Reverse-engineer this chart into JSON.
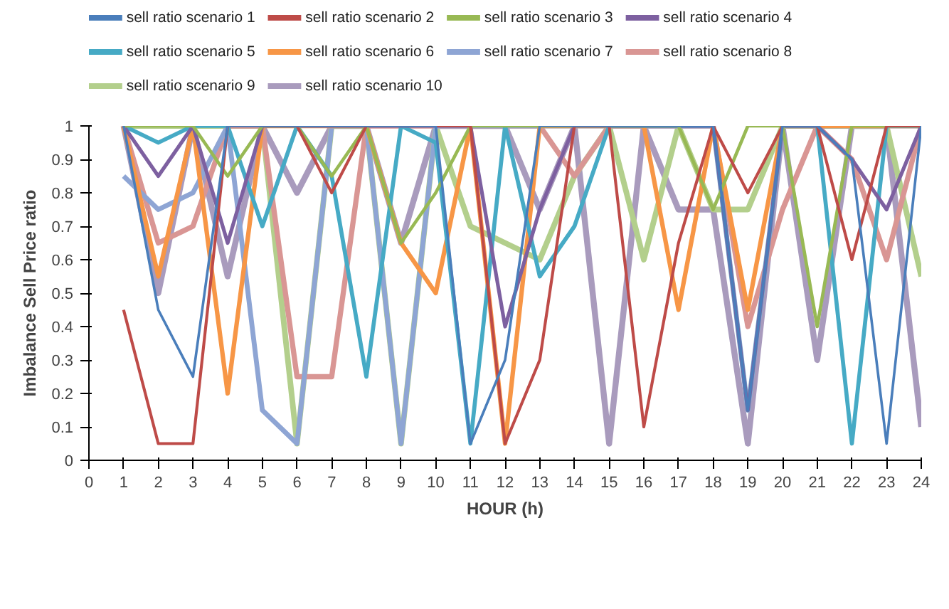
{
  "chart_data": {
    "type": "line",
    "xlabel": "HOUR (h)",
    "ylabel": "Imbalance Sell Price ratio",
    "x": [
      1,
      2,
      3,
      4,
      5,
      6,
      7,
      8,
      9,
      10,
      11,
      12,
      13,
      14,
      15,
      16,
      17,
      18,
      19,
      20,
      21,
      22,
      23,
      24
    ],
    "xlim": [
      0,
      24
    ],
    "xticks": [
      0,
      1,
      2,
      3,
      4,
      5,
      6,
      7,
      8,
      9,
      10,
      11,
      12,
      13,
      14,
      15,
      16,
      17,
      18,
      19,
      20,
      21,
      22,
      23,
      24
    ],
    "ylim": [
      0,
      1
    ],
    "yticks": [
      0,
      0.1,
      0.2,
      0.3,
      0.4,
      0.5,
      0.6,
      0.7,
      0.8,
      0.9,
      1
    ],
    "grid": false,
    "legend": "top",
    "marker": "none",
    "line_style": "solid",
    "series": [
      {
        "name": "sell ratio scenario 1",
        "color": "#4a7ebb",
        "values": [
          1,
          0.45,
          0.25,
          1,
          1,
          1,
          1,
          1,
          1,
          1,
          0.05,
          0.3,
          1,
          1,
          1,
          1,
          1,
          1,
          0.15,
          1,
          1,
          0.9,
          0.05,
          1
        ]
      },
      {
        "name": "sell ratio scenario 2",
        "color": "#be4b48",
        "values": [
          0.45,
          0.05,
          0.05,
          1,
          1,
          1,
          0.8,
          1,
          1,
          1,
          1,
          0.05,
          0.3,
          1,
          1,
          0.1,
          0.65,
          1,
          0.8,
          1,
          1,
          0.6,
          1,
          1
        ]
      },
      {
        "name": "sell ratio scenario 3",
        "color": "#98b954",
        "values": [
          1,
          1,
          1,
          0.85,
          1,
          1,
          0.85,
          1,
          0.65,
          0.8,
          1,
          1,
          1,
          1,
          1,
          1,
          1,
          0.75,
          1,
          1,
          0.4,
          1,
          1,
          1
        ]
      },
      {
        "name": "sell ratio scenario 4",
        "color": "#7d60a0",
        "values": [
          1,
          0.85,
          1,
          0.65,
          1,
          1,
          1,
          1,
          1,
          1,
          1,
          0.4,
          0.75,
          1,
          1,
          1,
          1,
          1,
          0.15,
          1,
          1,
          0.9,
          0.75,
          1
        ]
      },
      {
        "name": "sell ratio scenario 5",
        "color": "#46aac5",
        "values": [
          1,
          0.95,
          1,
          1,
          0.7,
          1,
          0.85,
          0.25,
          1,
          0.95,
          0.05,
          1,
          0.55,
          0.7,
          1,
          1,
          1,
          1,
          0.15,
          1,
          1,
          0.05,
          1,
          1
        ]
      },
      {
        "name": "sell ratio scenario 6",
        "color": "#f79646",
        "values": [
          1,
          0.55,
          1,
          0.2,
          1,
          1,
          1,
          1,
          0.65,
          0.5,
          1,
          0.05,
          1,
          1,
          1,
          1,
          0.45,
          1,
          0.45,
          1,
          1,
          1,
          1,
          1
        ]
      },
      {
        "name": "sell ratio scenario 7",
        "color": "#8ea5d4",
        "values": [
          0.85,
          0.75,
          0.8,
          1,
          0.15,
          0.05,
          1,
          1,
          0.05,
          1,
          1,
          1,
          1,
          1,
          1,
          1,
          1,
          1,
          0.15,
          1,
          1,
          1,
          1,
          1
        ]
      },
      {
        "name": "sell ratio scenario 8",
        "color": "#d99694",
        "values": [
          1,
          0.65,
          0.7,
          1,
          1,
          0.25,
          0.25,
          1,
          1,
          1,
          1,
          1,
          1,
          0.85,
          1,
          1,
          1,
          1,
          0.4,
          0.75,
          1,
          0.9,
          0.6,
          1
        ]
      },
      {
        "name": "sell ratio scenario 9",
        "color": "#b3cf8c",
        "values": [
          1,
          1,
          1,
          1,
          1,
          0.05,
          1,
          1,
          0.05,
          1,
          0.7,
          0.65,
          0.6,
          0.85,
          1,
          0.6,
          1,
          0.75,
          0.75,
          1,
          1,
          1,
          1,
          0.55
        ]
      },
      {
        "name": "sell ratio scenario 10",
        "color": "#a99bbd",
        "values": [
          1,
          0.5,
          1,
          0.55,
          1,
          0.8,
          1,
          1,
          0.65,
          1,
          1,
          1,
          0.75,
          1,
          0.05,
          1,
          0.75,
          0.75,
          0.05,
          1,
          0.3,
          1,
          1,
          0.1
        ]
      }
    ]
  }
}
